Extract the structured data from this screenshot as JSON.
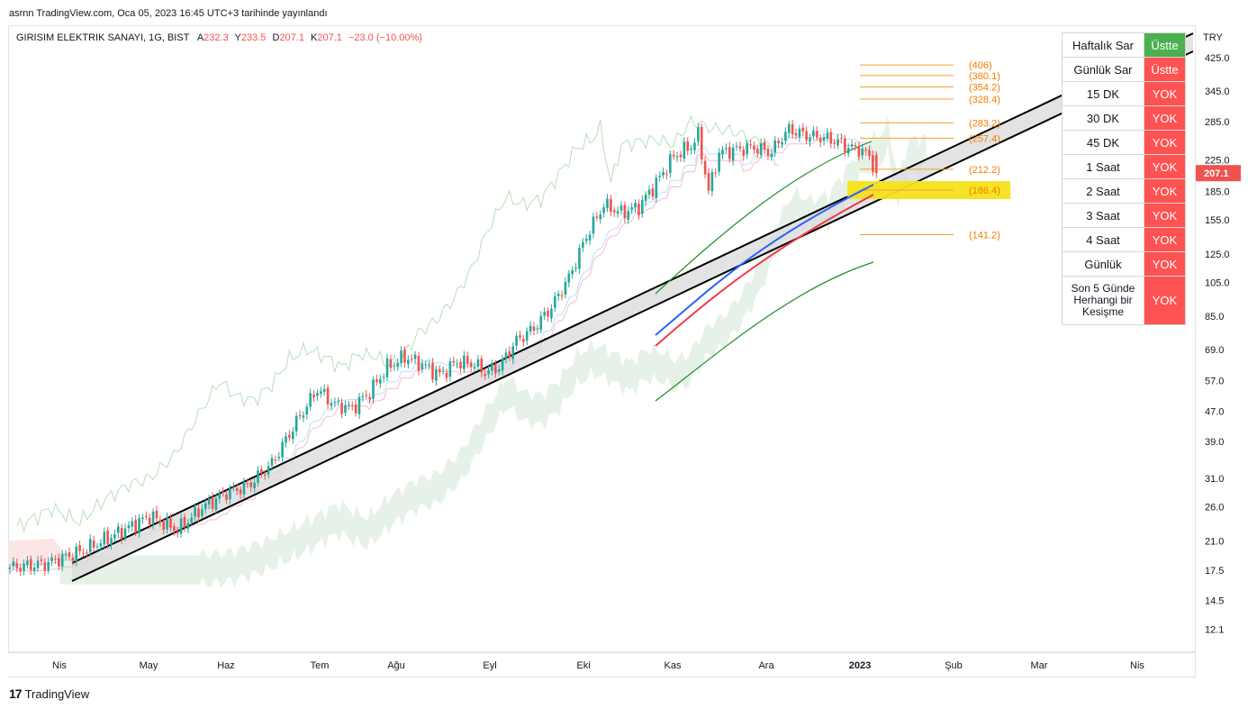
{
  "header": {
    "published": "asrnn TradingView.com, Oca 05, 2023 16:45 UTC+3 tarihinde yayınlandı"
  },
  "legend": {
    "symbol": "GIRISIM ELEKTRIK SANAYI, 1G, BIST",
    "open_label": "A",
    "open": "232.3",
    "high_label": "Y",
    "high": "233.5",
    "low_label": "D",
    "low": "207.1",
    "close_label": "K",
    "close": "207.1",
    "change": "−23.0 (−10.00%)"
  },
  "brand": {
    "logo": "17",
    "name": "TradingView"
  },
  "colors": {
    "up": "#26a69a",
    "down": "#ef5350",
    "fib": "#f7a12c",
    "fib_text": "#f57c00",
    "highlight": "#f5e11a",
    "ema_blue": "#2962ff",
    "ema_red": "#f23645",
    "channel": "#1e8c2a",
    "cloud_green": "#e2f0e3",
    "cloud_red": "#fbe3e3",
    "table_green": "#4caf50",
    "table_red": "#ff5252"
  },
  "chart_data": {
    "type": "candlestick",
    "currency": "TRY",
    "last_price": "207.1",
    "yscale": "log",
    "ylim": [
      10.5,
      520
    ],
    "y_ticks": [
      "425.0",
      "345.0",
      "285.0",
      "225.0",
      "185.0",
      "155.0",
      "125.0",
      "105.0",
      "85.0",
      "69.0",
      "57.0",
      "47.0",
      "39.0",
      "31.0",
      "26.0",
      "21.0",
      "17.5",
      "14.5",
      "12.1"
    ],
    "x_ticks": [
      "Nis",
      "May",
      "Haz",
      "Tem",
      "Ağu",
      "Eyl",
      "Eki",
      "Kas",
      "Ara",
      "2023",
      "Şub",
      "Mar",
      "Nis"
    ],
    "fib_levels": [
      {
        "label": "(406)",
        "value": 406
      },
      {
        "label": "(380.1)",
        "value": 380.1
      },
      {
        "label": "(354.2)",
        "value": 354.2
      },
      {
        "label": "(328.4)",
        "value": 328.4
      },
      {
        "label": "(283.2)",
        "value": 283.2
      },
      {
        "label": "(257.4)",
        "value": 257.4
      },
      {
        "label": "(212.2)",
        "value": 212.2
      },
      {
        "label": "(186.4)",
        "value": 186.4,
        "highlighted": true
      },
      {
        "label": "(141.2)",
        "value": 141.2
      }
    ],
    "candles_anchor": [
      [
        0,
        17.8
      ],
      [
        10,
        18.2
      ],
      [
        20,
        19.6
      ],
      [
        30,
        21.8
      ],
      [
        40,
        24.5
      ],
      [
        45,
        23.2
      ],
      [
        48,
        22.5
      ],
      [
        55,
        25.8
      ],
      [
        62,
        28.4
      ],
      [
        68,
        29.5
      ],
      [
        75,
        34
      ],
      [
        82,
        44
      ],
      [
        88,
        54
      ],
      [
        93,
        49
      ],
      [
        98,
        48
      ],
      [
        103,
        53
      ],
      [
        108,
        62
      ],
      [
        113,
        66
      ],
      [
        118,
        63
      ],
      [
        123,
        59
      ],
      [
        128,
        64
      ],
      [
        133,
        63
      ],
      [
        136,
        60
      ],
      [
        140,
        62
      ],
      [
        145,
        73
      ],
      [
        150,
        79
      ],
      [
        155,
        90
      ],
      [
        160,
        108
      ],
      [
        165,
        140
      ],
      [
        170,
        170
      ],
      [
        175,
        162
      ],
      [
        180,
        168
      ],
      [
        185,
        195
      ],
      [
        190,
        230
      ],
      [
        195,
        245
      ],
      [
        197,
        262
      ],
      [
        200,
        185
      ],
      [
        203,
        235
      ],
      [
        208,
        240
      ],
      [
        213,
        243
      ],
      [
        218,
        236
      ],
      [
        220,
        252
      ],
      [
        223,
        272
      ],
      [
        228,
        262
      ],
      [
        233,
        258
      ],
      [
        237,
        252
      ],
      [
        240,
        243
      ],
      [
        243,
        241
      ],
      [
        246,
        230
      ],
      [
        248,
        207.1
      ]
    ]
  },
  "table": {
    "rows": [
      {
        "label": "Haftalık Sar",
        "value": "Üstte",
        "status": "green"
      },
      {
        "label": "Günlük Sar",
        "value": "Üstte",
        "status": "red"
      },
      {
        "label": "15 DK",
        "value": "YOK",
        "status": "red"
      },
      {
        "label": "30 DK",
        "value": "YOK",
        "status": "red"
      },
      {
        "label": "45 DK",
        "value": "YOK",
        "status": "red"
      },
      {
        "label": "1 Saat",
        "value": "YOK",
        "status": "red"
      },
      {
        "label": "2 Saat",
        "value": "YOK",
        "status": "red"
      },
      {
        "label": "3 Saat",
        "value": "YOK",
        "status": "red"
      },
      {
        "label": "4 Saat",
        "value": "YOK",
        "status": "red"
      },
      {
        "label": "Günlük",
        "value": "YOK",
        "status": "red"
      },
      {
        "label": "Son 5 Günde Herhangi bir Kesişme",
        "value": "YOK",
        "status": "red"
      }
    ]
  }
}
